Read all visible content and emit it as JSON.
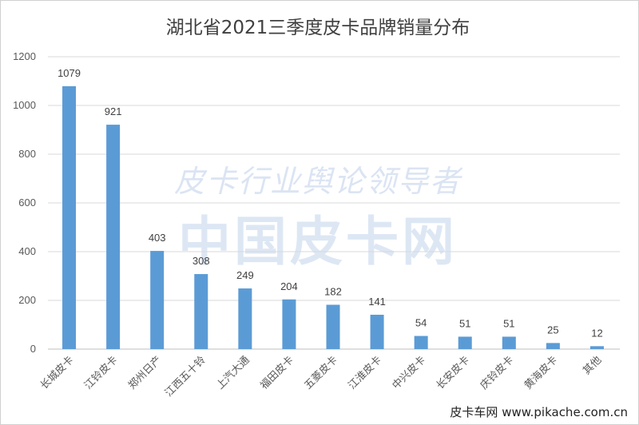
{
  "chart_data": {
    "type": "bar",
    "title": "湖北省2021三季度皮卡品牌销量分布",
    "categories": [
      "长城皮卡",
      "江铃皮卡",
      "郑州日产",
      "江西五十铃",
      "上汽大通",
      "福田皮卡",
      "五菱皮卡",
      "江淮皮卡",
      "中兴皮卡",
      "长安皮卡",
      "庆铃皮卡",
      "黄海皮卡",
      "其他"
    ],
    "values": [
      1079,
      921,
      403,
      308,
      249,
      204,
      182,
      141,
      54,
      51,
      51,
      25,
      12
    ],
    "ylim": [
      0,
      1200
    ],
    "yticks": [
      0,
      200,
      400,
      600,
      800,
      1000,
      1200
    ],
    "grid": true,
    "legend": "none",
    "bar_color": "#5b9bd5",
    "grid_color": "#d9d9d9"
  },
  "watermark": {
    "line1": "皮卡行业舆论领导者",
    "line2": "中国皮卡网"
  },
  "footer": {
    "site": "皮卡车网 www.pikache.com.cn"
  }
}
